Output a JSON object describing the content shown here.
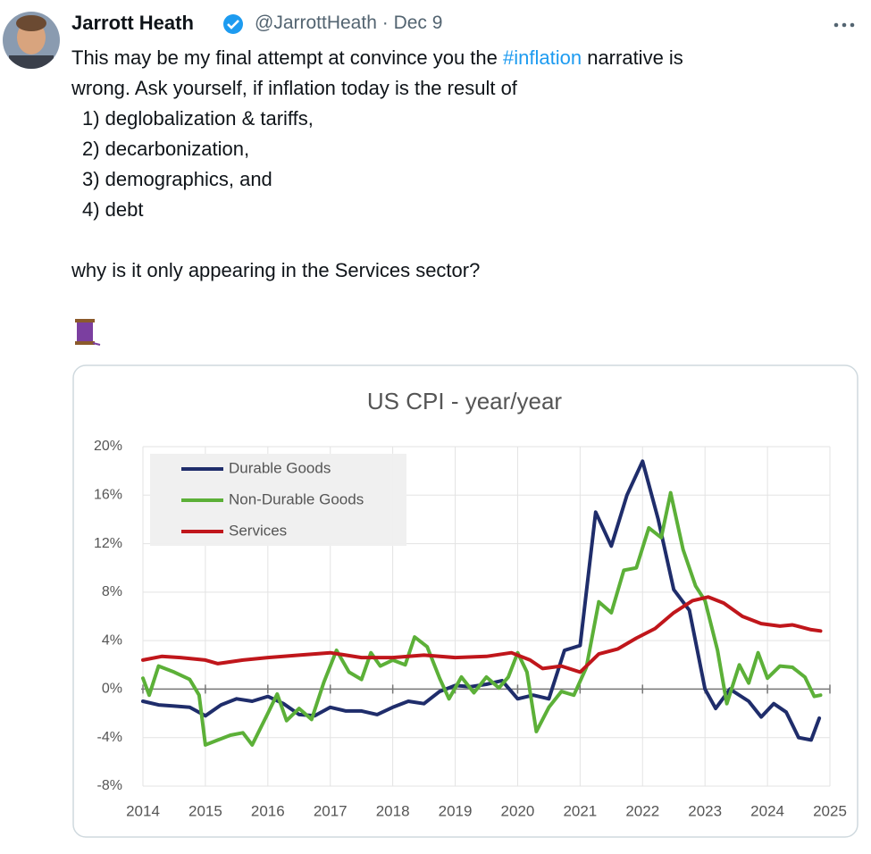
{
  "tweet": {
    "name": "Jarrott Heath",
    "handle": "@JarrottHeath",
    "separator": "·",
    "date": "Dec 9",
    "lines": [
      [
        "This may be my final attempt at convince you the ",
        "#inflation",
        " narrative is"
      ],
      [
        "wrong. Ask yourself, if inflation today is the result of"
      ],
      [
        "1) deglobalization & tariffs,"
      ],
      [
        "2) decarbonization,"
      ],
      [
        "3) demographics, and"
      ],
      [
        "4) debt"
      ],
      [
        "why is it only appearing in the Services sector?"
      ]
    ]
  },
  "chart_data": {
    "type": "line",
    "title": "US CPI - year/year",
    "xlim": [
      2014,
      2025
    ],
    "xticks": [
      2014,
      2015,
      2016,
      2017,
      2018,
      2019,
      2020,
      2021,
      2022,
      2023,
      2024,
      2025
    ],
    "ylim": [
      -8,
      20
    ],
    "yticks": [
      {
        "value": -8,
        "label": "-8%"
      },
      {
        "value": -4,
        "label": "-4%"
      },
      {
        "value": 0,
        "label": "0%"
      },
      {
        "value": 4,
        "label": "4%"
      },
      {
        "value": 8,
        "label": "8%"
      },
      {
        "value": 12,
        "label": "12%"
      },
      {
        "value": 16,
        "label": "16%"
      },
      {
        "value": 20,
        "label": "20%"
      }
    ],
    "grid": true,
    "legend": "top-left",
    "series": [
      {
        "name": "Durable Goods",
        "color": "#1f2d6b",
        "x": [
          2014,
          2014.25,
          2014.5,
          2014.75,
          2015,
          2015.25,
          2015.5,
          2015.75,
          2016,
          2016.25,
          2016.5,
          2016.75,
          2017,
          2017.25,
          2017.5,
          2017.75,
          2018,
          2018.25,
          2018.5,
          2018.75,
          2019,
          2019.25,
          2019.5,
          2019.75,
          2020,
          2020.25,
          2020.5,
          2020.75,
          2021,
          2021.25,
          2021.5,
          2021.75,
          2022,
          2022.25,
          2022.5,
          2022.75,
          2023,
          2023.17,
          2023.4,
          2023.7,
          2023.9,
          2024.1,
          2024.3,
          2024.5,
          2024.7,
          2024.83
        ],
        "values": [
          -1,
          -1.3,
          -1.4,
          -1.5,
          -2.2,
          -1.3,
          -0.8,
          -1.0,
          -0.6,
          -1.2,
          -2.1,
          -2.2,
          -1.5,
          -1.8,
          -1.8,
          -2.1,
          -1.5,
          -1.0,
          -1.2,
          -0.2,
          0.3,
          0.2,
          0.4,
          0.7,
          -0.8,
          -0.5,
          -0.8,
          3.2,
          3.6,
          14.6,
          11.8,
          16,
          18.8,
          14,
          8.2,
          6.5,
          0,
          -1.6,
          0,
          -1.0,
          -2.3,
          -1.2,
          -1.9,
          -4.0,
          -4.2,
          -2.4
        ]
      },
      {
        "name": "Non-Durable Goods",
        "color": "#5cb038",
        "x": [
          2014,
          2014.1,
          2014.25,
          2014.5,
          2014.75,
          2014.9,
          2015,
          2015.2,
          2015.4,
          2015.6,
          2015.75,
          2016,
          2016.15,
          2016.3,
          2016.5,
          2016.7,
          2016.9,
          2017.1,
          2017.3,
          2017.5,
          2017.65,
          2017.8,
          2018,
          2018.2,
          2018.35,
          2018.55,
          2018.75,
          2018.9,
          2019.1,
          2019.3,
          2019.5,
          2019.7,
          2019.85,
          2020,
          2020.15,
          2020.3,
          2020.5,
          2020.7,
          2020.9,
          2021.1,
          2021.3,
          2021.5,
          2021.7,
          2021.9,
          2022.1,
          2022.3,
          2022.45,
          2022.65,
          2022.85,
          2023,
          2023.2,
          2023.35,
          2023.55,
          2023.7,
          2023.85,
          2024,
          2024.2,
          2024.4,
          2024.6,
          2024.75,
          2024.85
        ],
        "values": [
          0.9,
          -0.5,
          1.9,
          1.4,
          0.8,
          -0.5,
          -4.6,
          -4.2,
          -3.8,
          -3.6,
          -4.6,
          -2.0,
          -0.4,
          -2.6,
          -1.6,
          -2.5,
          0.6,
          3.2,
          1.4,
          0.8,
          3.0,
          1.9,
          2.4,
          2.0,
          4.3,
          3.5,
          0.9,
          -0.8,
          1.0,
          -0.3,
          1.0,
          0.1,
          1.0,
          3.0,
          1.4,
          -3.5,
          -1.5,
          -0.2,
          -0.5,
          1.8,
          7.2,
          6.3,
          9.8,
          10,
          13.3,
          12.5,
          16.2,
          11.5,
          8.5,
          7.3,
          3.2,
          -1.2,
          2.0,
          0.5,
          3.0,
          0.9,
          1.9,
          1.8,
          1.0,
          -0.6,
          -0.5
        ]
      },
      {
        "name": "Services",
        "color": "#c0161b",
        "x": [
          2014,
          2014.3,
          2014.6,
          2015,
          2015.2,
          2015.6,
          2016,
          2016.5,
          2017,
          2017.5,
          2018,
          2018.5,
          2019,
          2019.5,
          2019.9,
          2020.2,
          2020.4,
          2020.7,
          2021,
          2021.3,
          2021.6,
          2021.9,
          2022.2,
          2022.5,
          2022.8,
          2023.05,
          2023.3,
          2023.6,
          2023.9,
          2024.2,
          2024.4,
          2024.7,
          2024.85
        ],
        "values": [
          2.4,
          2.7,
          2.6,
          2.4,
          2.1,
          2.4,
          2.6,
          2.8,
          3.0,
          2.6,
          2.6,
          2.8,
          2.6,
          2.7,
          3.0,
          2.4,
          1.7,
          1.9,
          1.4,
          2.9,
          3.3,
          4.2,
          5.0,
          6.3,
          7.3,
          7.6,
          7.1,
          6.0,
          5.4,
          5.2,
          5.3,
          4.9,
          4.8
        ]
      }
    ]
  }
}
